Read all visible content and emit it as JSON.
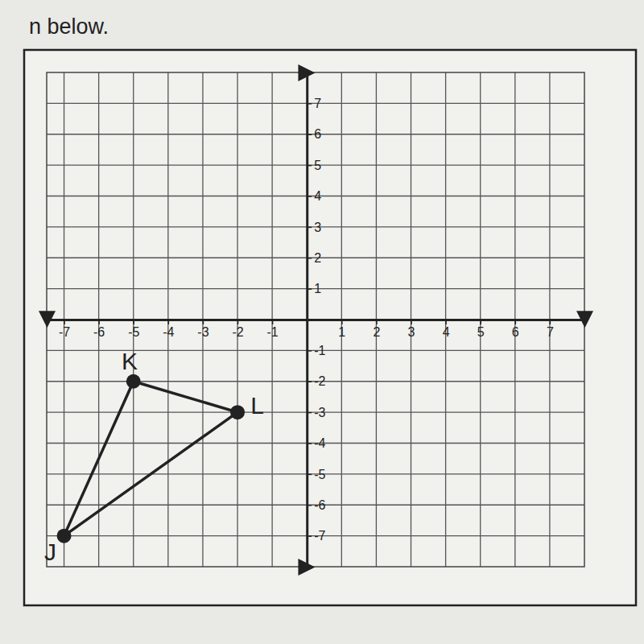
{
  "chart_data": {
    "type": "scatter",
    "title": "n below.",
    "points": [
      {
        "label": "J",
        "x": -7,
        "y": -7
      },
      {
        "label": "K",
        "x": -5,
        "y": -2
      },
      {
        "label": "L",
        "x": -2,
        "y": -3
      }
    ],
    "xlim": [
      -7.5,
      8
    ],
    "ylim": [
      -8,
      8
    ],
    "xticks": [
      -7,
      -6,
      -5,
      -4,
      -3,
      -2,
      -1,
      1,
      2,
      3,
      4,
      5,
      6,
      7
    ],
    "yticks": [
      -7,
      -6,
      -5,
      -4,
      -3,
      -2,
      -1,
      1,
      2,
      3,
      4,
      5,
      6,
      7
    ],
    "grid": true,
    "color": "#222222"
  }
}
